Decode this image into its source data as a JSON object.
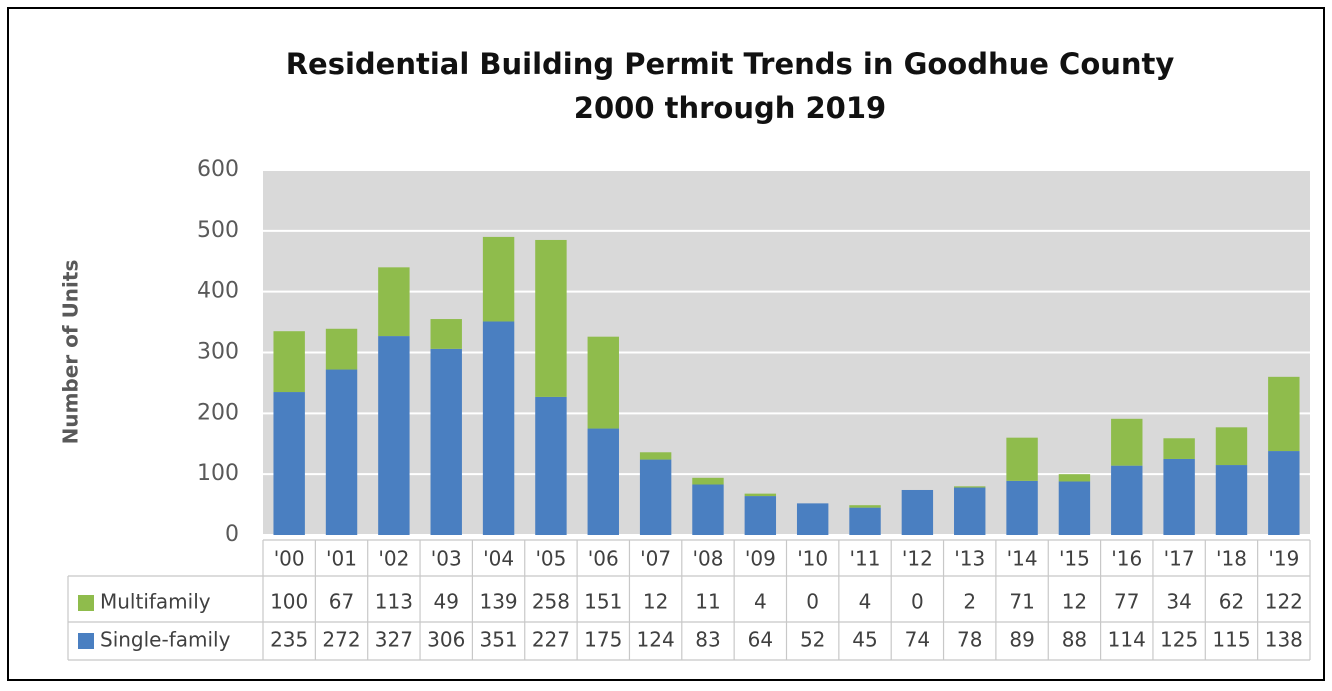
{
  "chart_data": {
    "type": "stacked_bar",
    "title": "Residential Building Permit Trends in Goodhue County",
    "subtitle": "2000 through 2019",
    "y_label": "Number of Units",
    "categories": [
      "'00",
      "'01",
      "'02",
      "'03",
      "'04",
      "'05",
      "'06",
      "'07",
      "'08",
      "'09",
      "'10",
      "'11",
      "'12",
      "'13",
      "'14",
      "'15",
      "'16",
      "'17",
      "'18",
      "'19"
    ],
    "series": [
      {
        "name": "Single-family",
        "color": "#4a7fc1",
        "values": [
          235,
          272,
          327,
          306,
          351,
          227,
          175,
          124,
          83,
          64,
          52,
          45,
          74,
          78,
          89,
          88,
          114,
          125,
          115,
          138
        ]
      },
      {
        "name": "Multifamily",
        "color": "#8fbc4c",
        "values": [
          100,
          67,
          113,
          49,
          139,
          258,
          151,
          12,
          11,
          4,
          0,
          4,
          0,
          2,
          71,
          12,
          77,
          34,
          62,
          122
        ]
      }
    ],
    "ylim": [
      0,
      600
    ],
    "yticks": [
      0,
      100,
      200,
      300,
      400,
      500,
      600
    ],
    "grid": true
  }
}
